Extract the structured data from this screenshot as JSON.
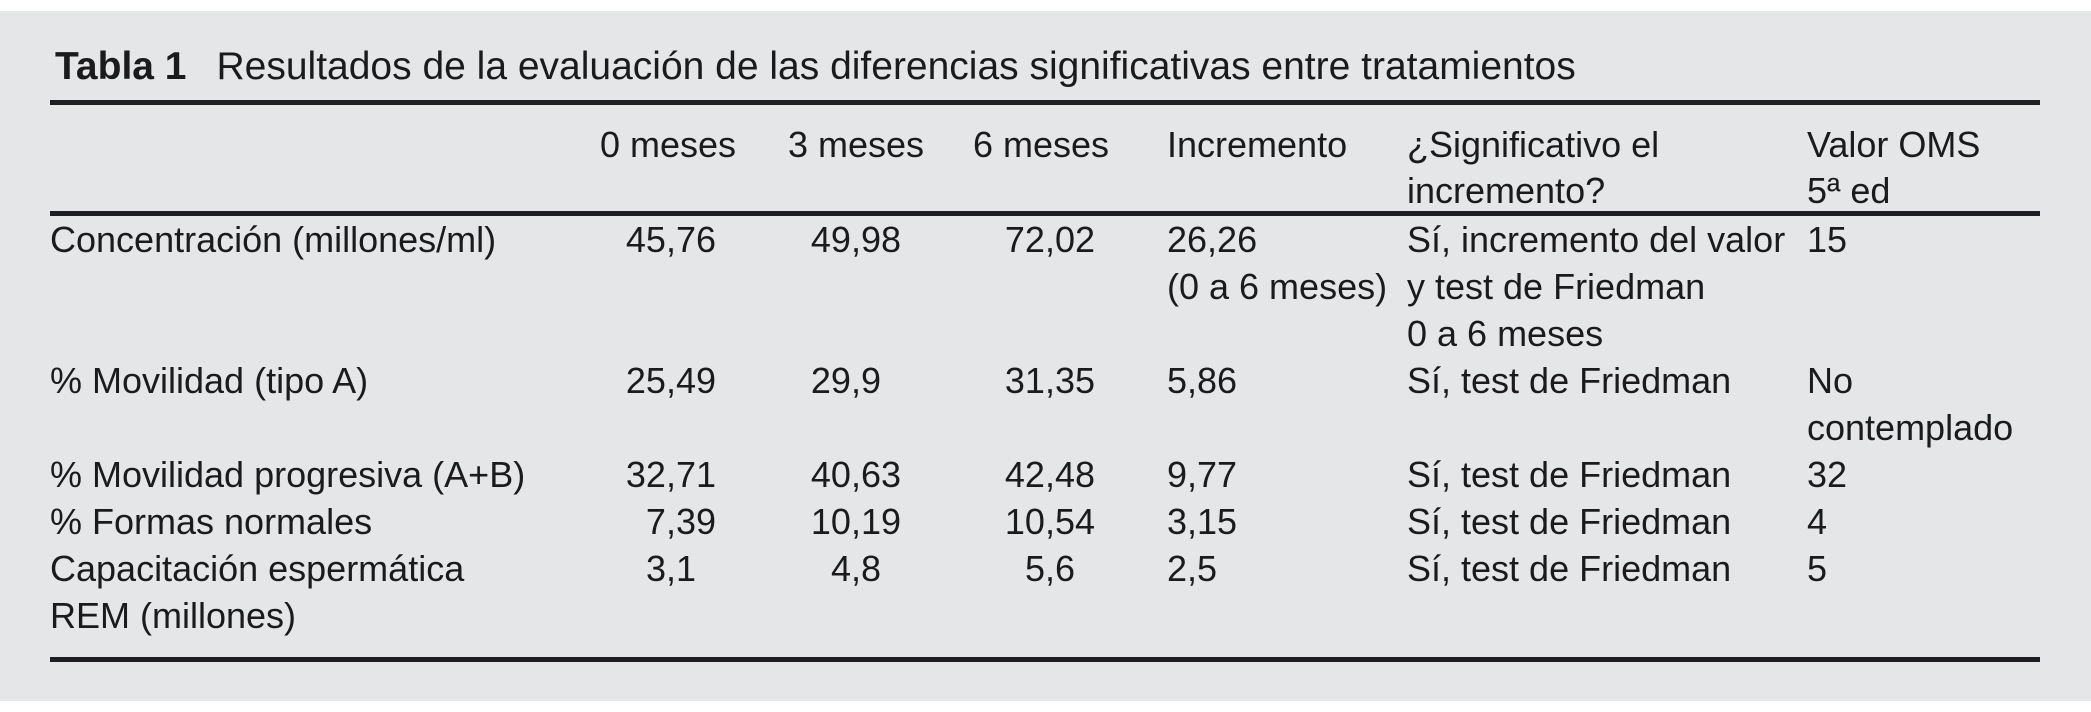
{
  "table": {
    "title_label": "Tabla 1",
    "title_text": "Resultados de la evaluación de las diferencias significativas entre tratamientos",
    "columns": {
      "label": "",
      "m0": "0 meses",
      "m3": "3 meses",
      "m6": "6 meses",
      "inc": "Incremento",
      "sig": "¿Significativo el\nincremento?",
      "oms": "Valor OMS\n5ª ed"
    },
    "rows": [
      {
        "label": "Concentración (millones/ml)",
        "m0": "45,76",
        "m3": "49,98",
        "m6": "72,02",
        "inc": "26,26\n(0 a 6 meses)",
        "sig": "Sí, incremento del valor\ny test de Friedman\n0 a 6 meses",
        "oms": "15"
      },
      {
        "label": "% Movilidad (tipo A)",
        "m0": "25,49",
        "m3": "29,9",
        "m6": "31,35",
        "inc": "5,86",
        "sig": "Sí, test de Friedman",
        "oms": "No\ncontemplado"
      },
      {
        "label": "% Movilidad progresiva (A+B)",
        "m0": "32,71",
        "m3": "40,63",
        "m6": "42,48",
        "inc": "9,77",
        "sig": "Sí, test de Friedman",
        "oms": "32"
      },
      {
        "label": "% Formas normales",
        "m0": "7,39",
        "m3": "10,19",
        "m6": "10,54",
        "inc": "3,15",
        "sig": "Sí, test de Friedman",
        "oms": "4"
      },
      {
        "label": "Capacitación espermática\nREM (millones)",
        "m0": "3,1",
        "m3": "4,8",
        "m6": "5,6",
        "inc": "2,5",
        "sig": "Sí, test de Friedman",
        "oms": "5"
      }
    ]
  },
  "colors": {
    "panel_bg": "#e5e6e8",
    "rule": "#1f1f23",
    "text": "#1b1b1d"
  }
}
